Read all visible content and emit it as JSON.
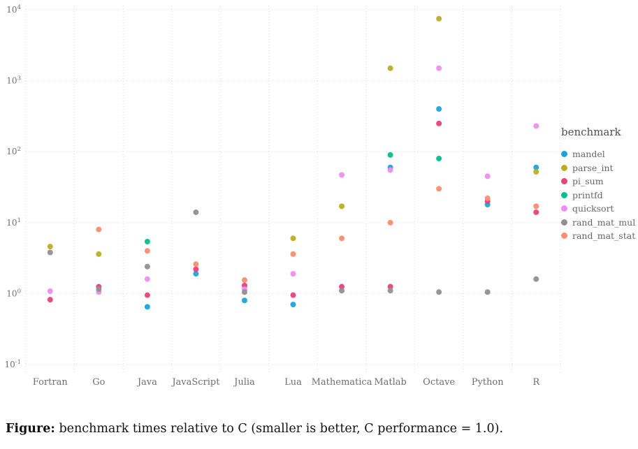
{
  "figure": {
    "caption_label": "Figure:",
    "caption_text": "benchmark times relative to C (smaller is better, C performance = 1.0)."
  },
  "chart_data": {
    "type": "scatter",
    "title": "",
    "x_categories": [
      "Fortran",
      "Go",
      "Java",
      "JavaScript",
      "Julia",
      "Lua",
      "Mathematica",
      "Matlab",
      "Octave",
      "Python",
      "R"
    ],
    "y_scale": "log10",
    "y_axis_tick_exponents": [
      4,
      3,
      2,
      1,
      0,
      -1
    ],
    "y_range_exponents": [
      -1,
      4
    ],
    "grid": "dotted",
    "legend": {
      "title": "benchmark",
      "position": "right"
    },
    "series": [
      {
        "name": "mandel",
        "color": "#1ba3dd",
        "values": [
          null,
          null,
          0.65,
          1.9,
          0.8,
          0.7,
          null,
          60,
          400,
          18,
          60
        ]
      },
      {
        "name": "parse_int",
        "color": "#b8ae22",
        "values": [
          4.6,
          3.6,
          null,
          null,
          null,
          6,
          17,
          1500,
          7500,
          null,
          52
        ]
      },
      {
        "name": "pi_sum",
        "color": "#e8417c",
        "values": [
          0.82,
          1.25,
          0.95,
          2.2,
          1.3,
          0.95,
          1.25,
          1.25,
          250,
          20,
          14
        ]
      },
      {
        "name": "printfd",
        "color": "#00c08d",
        "values": [
          null,
          null,
          5.4,
          null,
          null,
          null,
          null,
          90,
          80,
          null,
          null
        ]
      },
      {
        "name": "quicksort",
        "color": "#f08df0",
        "values": [
          1.08,
          1.05,
          1.6,
          null,
          1.15,
          1.9,
          47,
          55,
          1500,
          45,
          230
        ]
      },
      {
        "name": "rand_mat_mul",
        "color": "#909090",
        "values": [
          3.8,
          1.15,
          2.4,
          14,
          1.05,
          null,
          1.1,
          1.1,
          1.05,
          1.05,
          1.6
        ]
      },
      {
        "name": "rand_mat_stat",
        "color": "#fa8e6d",
        "values": [
          null,
          8,
          4,
          2.6,
          1.55,
          3.6,
          6,
          10,
          30,
          22,
          17
        ]
      }
    ]
  }
}
